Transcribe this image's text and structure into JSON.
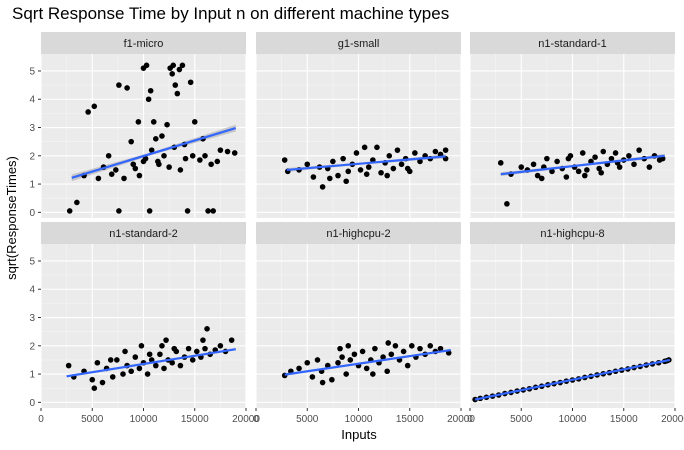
{
  "chart_data": {
    "type": "scatter",
    "title": "Sqrt Response Time by Input n on different machine types",
    "xlabel": "Inputs",
    "ylabel": "sqrt(ResponseTimes)",
    "xlim": [
      0,
      20000
    ],
    "ylim": [
      -0.2,
      5.6
    ],
    "x_ticks": [
      0,
      5000,
      10000,
      15000,
      20000
    ],
    "x_tick_labels": [
      "0",
      "5000",
      "10000",
      "15000",
      "20000"
    ],
    "y_ticks": [
      0,
      1,
      2,
      3,
      4,
      5
    ],
    "y_tick_labels": [
      "0",
      "1",
      "2",
      "3",
      "4",
      "5"
    ],
    "smooth_color": "#3366ff",
    "point_color": "#000000",
    "band_color": "#c0c0c0",
    "panels": [
      {
        "name": "f1-micro",
        "fit": {
          "x0": 3000,
          "y0": 1.22,
          "x1": 19000,
          "y1": 2.98
        },
        "band": [
          0.12,
          0.05,
          0.12
        ],
        "rows": 0,
        "col": 0,
        "points": [
          [
            2800,
            0.05
          ],
          [
            3500,
            0.35
          ],
          [
            4200,
            1.3
          ],
          [
            4600,
            3.55
          ],
          [
            5200,
            3.75
          ],
          [
            5600,
            1.2
          ],
          [
            6100,
            1.6
          ],
          [
            6600,
            2.0
          ],
          [
            6900,
            1.35
          ],
          [
            7300,
            1.5
          ],
          [
            7600,
            4.5
          ],
          [
            7600,
            0.05
          ],
          [
            8100,
            1.2
          ],
          [
            8400,
            4.4
          ],
          [
            8800,
            2.5
          ],
          [
            9200,
            1.55
          ],
          [
            9500,
            3.2
          ],
          [
            10000,
            1.8
          ],
          [
            10000,
            5.1
          ],
          [
            10300,
            5.2
          ],
          [
            10500,
            4.0
          ],
          [
            10600,
            0.05
          ],
          [
            10700,
            4.3
          ],
          [
            11000,
            3.2
          ],
          [
            11200,
            2.6
          ],
          [
            11400,
            1.8
          ],
          [
            11800,
            2.7
          ],
          [
            12300,
            3.1
          ],
          [
            12600,
            5.1
          ],
          [
            12800,
            4.9
          ],
          [
            12900,
            5.2
          ],
          [
            13100,
            4.5
          ],
          [
            13300,
            4.2
          ],
          [
            13500,
            5.05
          ],
          [
            13800,
            5.2
          ],
          [
            14100,
            1.9
          ],
          [
            14300,
            0.05
          ],
          [
            14600,
            4.6
          ],
          [
            15000,
            3.2
          ],
          [
            15500,
            1.85
          ],
          [
            16000,
            2.0
          ],
          [
            16300,
            0.05
          ],
          [
            16800,
            0.05
          ],
          [
            17500,
            2.2
          ],
          [
            18200,
            2.15
          ],
          [
            18900,
            2.1
          ],
          [
            9000,
            1.7
          ],
          [
            9600,
            1.3
          ],
          [
            10200,
            1.9
          ],
          [
            10800,
            2.2
          ],
          [
            11500,
            1.7
          ],
          [
            12000,
            2.0
          ],
          [
            12500,
            1.6
          ],
          [
            13000,
            2.3
          ],
          [
            13600,
            1.5
          ],
          [
            14000,
            2.4
          ],
          [
            14800,
            2.0
          ],
          [
            15800,
            2.6
          ],
          [
            16600,
            1.7
          ],
          [
            17200,
            1.8
          ]
        ]
      },
      {
        "name": "g1-small",
        "fit": {
          "x0": 3000,
          "y0": 1.5,
          "x1": 18500,
          "y1": 1.98
        },
        "band": [
          0.07,
          0.03,
          0.07
        ],
        "rows": 0,
        "col": 1,
        "points": [
          [
            2800,
            1.85
          ],
          [
            3100,
            1.45
          ],
          [
            4200,
            1.5
          ],
          [
            5000,
            1.7
          ],
          [
            5600,
            1.25
          ],
          [
            6200,
            1.6
          ],
          [
            6500,
            0.9
          ],
          [
            7000,
            1.55
          ],
          [
            7500,
            1.8
          ],
          [
            8000,
            1.3
          ],
          [
            8500,
            1.9
          ],
          [
            9000,
            1.45
          ],
          [
            9400,
            1.7
          ],
          [
            9800,
            2.1
          ],
          [
            10200,
            1.5
          ],
          [
            10600,
            2.3
          ],
          [
            11000,
            1.6
          ],
          [
            11400,
            1.85
          ],
          [
            11800,
            2.3
          ],
          [
            12200,
            1.4
          ],
          [
            12600,
            1.75
          ],
          [
            13000,
            2.0
          ],
          [
            13400,
            1.55
          ],
          [
            13800,
            2.2
          ],
          [
            14200,
            1.7
          ],
          [
            14600,
            1.9
          ],
          [
            15000,
            1.45
          ],
          [
            15500,
            2.1
          ],
          [
            16000,
            1.8
          ],
          [
            16500,
            2.0
          ],
          [
            17000,
            1.9
          ],
          [
            17500,
            2.15
          ],
          [
            18000,
            2.05
          ],
          [
            18500,
            1.9
          ],
          [
            18500,
            2.2
          ],
          [
            7200,
            1.2
          ],
          [
            8800,
            1.1
          ],
          [
            10800,
            1.35
          ],
          [
            12800,
            1.3
          ],
          [
            14800,
            1.55
          ]
        ]
      },
      {
        "name": "n1-standard-1",
        "fit": {
          "x0": 3000,
          "y0": 1.35,
          "x1": 19000,
          "y1": 2.0
        },
        "band": [
          0.07,
          0.03,
          0.07
        ],
        "rows": 0,
        "col": 2,
        "points": [
          [
            3000,
            1.75
          ],
          [
            3600,
            0.3
          ],
          [
            4000,
            1.35
          ],
          [
            5000,
            1.6
          ],
          [
            5600,
            1.5
          ],
          [
            6200,
            1.7
          ],
          [
            6600,
            1.3
          ],
          [
            7000,
            1.2
          ],
          [
            7500,
            1.9
          ],
          [
            8000,
            1.45
          ],
          [
            8500,
            1.8
          ],
          [
            9000,
            1.55
          ],
          [
            9400,
            1.25
          ],
          [
            9800,
            2.0
          ],
          [
            10200,
            1.6
          ],
          [
            10600,
            1.45
          ],
          [
            11000,
            2.1
          ],
          [
            11400,
            1.5
          ],
          [
            11800,
            1.8
          ],
          [
            12200,
            1.95
          ],
          [
            12600,
            1.55
          ],
          [
            13000,
            2.15
          ],
          [
            13400,
            1.7
          ],
          [
            13800,
            1.9
          ],
          [
            14200,
            2.1
          ],
          [
            14600,
            1.6
          ],
          [
            15000,
            1.85
          ],
          [
            15500,
            2.0
          ],
          [
            16000,
            1.7
          ],
          [
            16500,
            2.2
          ],
          [
            17000,
            1.9
          ],
          [
            17500,
            1.6
          ],
          [
            18000,
            2.0
          ],
          [
            18500,
            1.85
          ],
          [
            18800,
            1.9
          ],
          [
            7200,
            1.6
          ],
          [
            9600,
            1.9
          ],
          [
            11200,
            1.3
          ],
          [
            12800,
            1.4
          ],
          [
            14400,
            1.75
          ]
        ]
      },
      {
        "name": "n1-standard-2",
        "fit": {
          "x0": 2500,
          "y0": 0.92,
          "x1": 19000,
          "y1": 1.88
        },
        "band": [
          0.04,
          0.02,
          0.04
        ],
        "rows": 1,
        "col": 0,
        "points": [
          [
            2700,
            1.3
          ],
          [
            3200,
            0.9
          ],
          [
            4200,
            1.1
          ],
          [
            5000,
            0.8
          ],
          [
            5500,
            1.4
          ],
          [
            6000,
            0.7
          ],
          [
            6400,
            1.2
          ],
          [
            7000,
            0.9
          ],
          [
            7400,
            1.5
          ],
          [
            8000,
            1.0
          ],
          [
            8400,
            1.3
          ],
          [
            8800,
            1.1
          ],
          [
            9200,
            1.6
          ],
          [
            9600,
            1.2
          ],
          [
            10000,
            1.4
          ],
          [
            10400,
            1.0
          ],
          [
            10800,
            1.5
          ],
          [
            11200,
            1.3
          ],
          [
            11600,
            1.7
          ],
          [
            12000,
            1.2
          ],
          [
            12400,
            1.5
          ],
          [
            12800,
            1.4
          ],
          [
            13200,
            1.8
          ],
          [
            13600,
            1.3
          ],
          [
            14000,
            1.6
          ],
          [
            14400,
            1.9
          ],
          [
            14800,
            1.5
          ],
          [
            15200,
            1.8
          ],
          [
            15600,
            1.6
          ],
          [
            16000,
            1.9
          ],
          [
            16500,
            1.7
          ],
          [
            17000,
            1.85
          ],
          [
            17500,
            2.0
          ],
          [
            18000,
            1.8
          ],
          [
            18600,
            2.2
          ],
          [
            5200,
            0.5
          ],
          [
            6800,
            1.5
          ],
          [
            8200,
            1.8
          ],
          [
            9800,
            2.0
          ],
          [
            10600,
            1.7
          ],
          [
            11800,
            2.0
          ],
          [
            13000,
            1.9
          ],
          [
            15800,
            2.2
          ],
          [
            16200,
            2.6
          ],
          [
            12200,
            2.2
          ]
        ]
      },
      {
        "name": "n1-highcpu-2",
        "fit": {
          "x0": 2800,
          "y0": 0.98,
          "x1": 19000,
          "y1": 1.85
        },
        "band": [
          0.04,
          0.02,
          0.04
        ],
        "rows": 1,
        "col": 1,
        "points": [
          [
            2800,
            0.95
          ],
          [
            3400,
            1.1
          ],
          [
            4200,
            1.2
          ],
          [
            5000,
            1.4
          ],
          [
            5500,
            0.9
          ],
          [
            6000,
            1.5
          ],
          [
            6400,
            1.1
          ],
          [
            7000,
            1.3
          ],
          [
            7400,
            0.8
          ],
          [
            8000,
            1.4
          ],
          [
            8400,
            1.6
          ],
          [
            8800,
            1.0
          ],
          [
            9200,
            1.5
          ],
          [
            9600,
            1.7
          ],
          [
            10000,
            1.3
          ],
          [
            10400,
            1.8
          ],
          [
            10800,
            1.2
          ],
          [
            11200,
            1.5
          ],
          [
            11600,
            1.9
          ],
          [
            12000,
            1.4
          ],
          [
            12400,
            1.6
          ],
          [
            12800,
            1.1
          ],
          [
            13200,
            1.7
          ],
          [
            13600,
            2.0
          ],
          [
            14000,
            1.5
          ],
          [
            14400,
            1.8
          ],
          [
            14800,
            1.3
          ],
          [
            15200,
            2.0
          ],
          [
            15600,
            1.6
          ],
          [
            16000,
            1.9
          ],
          [
            16500,
            1.7
          ],
          [
            17000,
            2.0
          ],
          [
            17500,
            1.8
          ],
          [
            18000,
            1.9
          ],
          [
            18800,
            1.75
          ],
          [
            6500,
            0.7
          ],
          [
            8200,
            1.9
          ],
          [
            9000,
            2.0
          ],
          [
            11400,
            1.0
          ],
          [
            12900,
            2.1
          ]
        ]
      },
      {
        "name": "n1-highcpu-8",
        "fit": {
          "x0": 500,
          "y0": 0.1,
          "x1": 19500,
          "y1": 1.5
        },
        "band": [
          0.02,
          0.01,
          0.02
        ],
        "rows": 1,
        "col": 2,
        "points": [
          [
            500,
            0.1
          ],
          [
            1000,
            0.14
          ],
          [
            1600,
            0.18
          ],
          [
            2200,
            0.22
          ],
          [
            2800,
            0.26
          ],
          [
            3400,
            0.31
          ],
          [
            4000,
            0.35
          ],
          [
            4600,
            0.4
          ],
          [
            5200,
            0.44
          ],
          [
            5800,
            0.48
          ],
          [
            6400,
            0.53
          ],
          [
            7000,
            0.57
          ],
          [
            7600,
            0.62
          ],
          [
            8200,
            0.66
          ],
          [
            8800,
            0.7
          ],
          [
            9400,
            0.75
          ],
          [
            10000,
            0.79
          ],
          [
            10600,
            0.83
          ],
          [
            11200,
            0.88
          ],
          [
            11800,
            0.92
          ],
          [
            12400,
            0.97
          ],
          [
            13000,
            1.01
          ],
          [
            13600,
            1.05
          ],
          [
            14200,
            1.1
          ],
          [
            14800,
            1.14
          ],
          [
            15400,
            1.18
          ],
          [
            16000,
            1.23
          ],
          [
            16600,
            1.27
          ],
          [
            17200,
            1.32
          ],
          [
            17800,
            1.36
          ],
          [
            18400,
            1.4
          ],
          [
            19000,
            1.45
          ],
          [
            19400,
            1.5
          ],
          [
            19200,
            1.47
          ]
        ]
      }
    ]
  }
}
